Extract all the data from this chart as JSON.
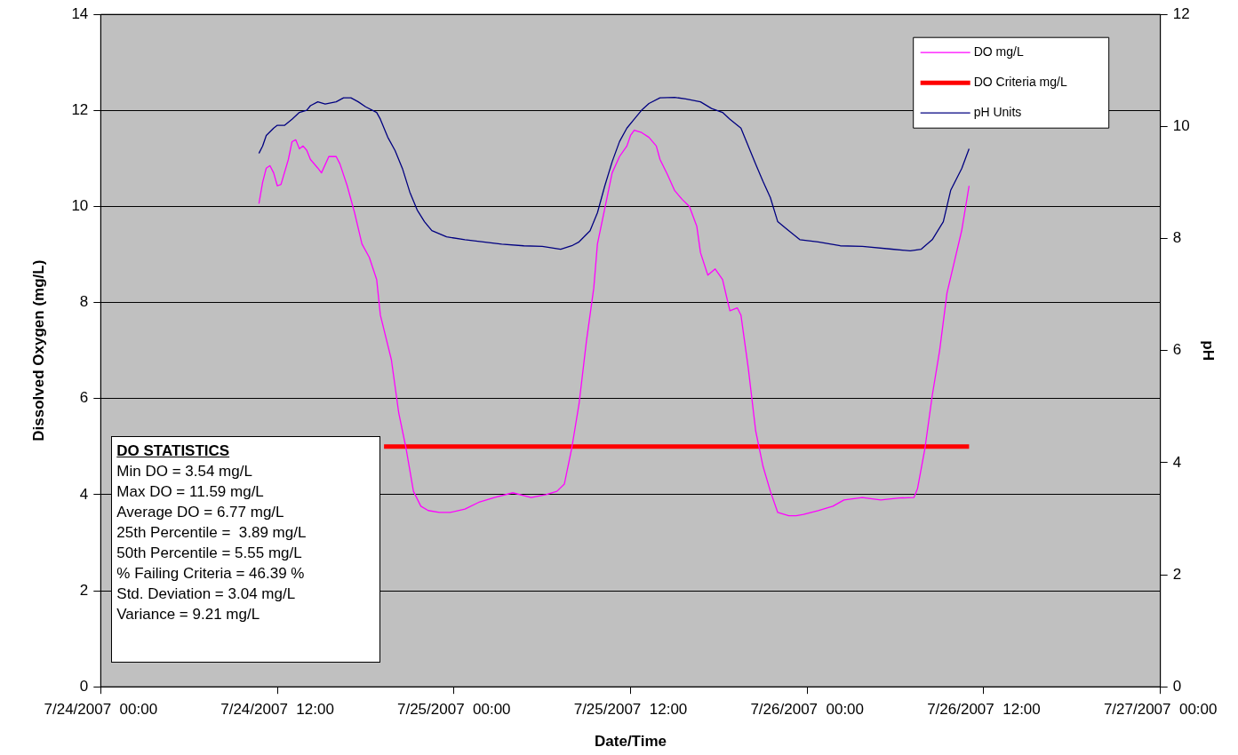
{
  "chart_data": {
    "type": "line",
    "xlabel": "Date/Time",
    "ylabel": "Dissolved Oxygen (mg/L)",
    "y2label": "pH",
    "series": [
      {
        "name": "DO mg/L",
        "color": "#ff00ff",
        "x": [
          "2007-07-24T10:45",
          "2007-07-24T11:00",
          "2007-07-24T11:15",
          "2007-07-24T11:30",
          "2007-07-24T11:45",
          "2007-07-24T12:00",
          "2007-07-24T12:15",
          "2007-07-24T12:45",
          "2007-07-24T13:00",
          "2007-07-24T13:15",
          "2007-07-24T13:30",
          "2007-07-24T13:45",
          "2007-07-24T14:00",
          "2007-07-24T14:15",
          "2007-07-24T14:45",
          "2007-07-24T15:00",
          "2007-07-24T15:30",
          "2007-07-24T16:00",
          "2007-07-24T16:15",
          "2007-07-24T16:45",
          "2007-07-24T17:15",
          "2007-07-24T17:45",
          "2007-07-24T18:15",
          "2007-07-24T18:45",
          "2007-07-24T19:00",
          "2007-07-24T19:45",
          "2007-07-24T20:15",
          "2007-07-24T20:45",
          "2007-07-24T21:15",
          "2007-07-24T21:45",
          "2007-07-24T22:15",
          "2007-07-24T23:00",
          "2007-07-24T23:45",
          "2007-07-25T00:45",
          "2007-07-25T01:45",
          "2007-07-25T02:45",
          "2007-07-25T04:00",
          "2007-07-25T05:15",
          "2007-07-25T06:15",
          "2007-07-25T07:00",
          "2007-07-25T07:30",
          "2007-07-25T08:00",
          "2007-07-25T08:30",
          "2007-07-25T09:00",
          "2007-07-25T09:30",
          "2007-07-25T09:45",
          "2007-07-25T10:15",
          "2007-07-25T10:45",
          "2007-07-25T11:15",
          "2007-07-25T11:45",
          "2007-07-25T12:00",
          "2007-07-25T12:15",
          "2007-07-25T12:45",
          "2007-07-25T13:15",
          "2007-07-25T13:45",
          "2007-07-25T14:00",
          "2007-07-25T14:30",
          "2007-07-25T15:00",
          "2007-07-25T15:30",
          "2007-07-25T16:00",
          "2007-07-25T16:30",
          "2007-07-25T16:45",
          "2007-07-25T17:15",
          "2007-07-25T17:45",
          "2007-07-25T18:15",
          "2007-07-25T18:30",
          "2007-07-25T18:45",
          "2007-07-25T19:15",
          "2007-07-25T19:30",
          "2007-07-25T20:00",
          "2007-07-25T20:30",
          "2007-07-25T21:00",
          "2007-07-25T21:30",
          "2007-07-25T22:00",
          "2007-07-25T22:45",
          "2007-07-25T23:15",
          "2007-07-25T23:45",
          "2007-07-26T00:45",
          "2007-07-26T01:45",
          "2007-07-26T02:30",
          "2007-07-26T03:45",
          "2007-07-26T05:00",
          "2007-07-26T06:15",
          "2007-07-26T07:15",
          "2007-07-26T07:30",
          "2007-07-26T08:00",
          "2007-07-26T08:30",
          "2007-07-26T09:00",
          "2007-07-26T09:30",
          "2007-07-26T10:00",
          "2007-07-26T10:30",
          "2007-07-26T11:00"
        ],
        "values": [
          10.06,
          10.5,
          10.8,
          10.85,
          10.7,
          10.43,
          10.46,
          10.98,
          11.35,
          11.39,
          11.2,
          11.26,
          11.17,
          10.98,
          10.8,
          10.7,
          11.04,
          11.04,
          10.89,
          10.43,
          9.87,
          9.22,
          8.94,
          8.48,
          7.74,
          6.81,
          5.7,
          4.96,
          4.07,
          3.76,
          3.67,
          3.63,
          3.63,
          3.7,
          3.85,
          3.94,
          4.04,
          3.94,
          4.0,
          4.07,
          4.22,
          4.96,
          5.89,
          7.19,
          8.3,
          9.22,
          9.96,
          10.7,
          11.04,
          11.26,
          11.48,
          11.59,
          11.54,
          11.44,
          11.26,
          10.98,
          10.67,
          10.33,
          10.15,
          10.0,
          9.59,
          9.04,
          8.57,
          8.7,
          8.48,
          8.15,
          7.83,
          7.89,
          7.74,
          6.63,
          5.33,
          4.59,
          4.07,
          3.63,
          3.56,
          3.56,
          3.59,
          3.67,
          3.76,
          3.89,
          3.94,
          3.89,
          3.93,
          3.94,
          4.13,
          4.96,
          6.07,
          7.0,
          8.2,
          8.85,
          9.5,
          10.43
        ]
      },
      {
        "name": "DO Criteria mg/L",
        "color": "#ff0000",
        "x": [
          "2007-07-24T19:15",
          "2007-07-26T11:00"
        ],
        "values": [
          5,
          5
        ]
      },
      {
        "name": "pH Units",
        "color": "#000080",
        "axis": "y2",
        "x": [
          "2007-07-24T10:45",
          "2007-07-24T11:00",
          "2007-07-24T11:15",
          "2007-07-24T11:45",
          "2007-07-24T12:00",
          "2007-07-24T12:30",
          "2007-07-24T13:00",
          "2007-07-24T13:30",
          "2007-07-24T14:00",
          "2007-07-24T14:15",
          "2007-07-24T14:45",
          "2007-07-24T15:15",
          "2007-07-24T16:00",
          "2007-07-24T16:30",
          "2007-07-24T17:00",
          "2007-07-24T17:30",
          "2007-07-24T18:00",
          "2007-07-24T18:45",
          "2007-07-24T19:00",
          "2007-07-24T19:30",
          "2007-07-24T20:00",
          "2007-07-24T20:30",
          "2007-07-24T21:00",
          "2007-07-24T21:30",
          "2007-07-24T22:00",
          "2007-07-24T22:30",
          "2007-07-24T23:30",
          "2007-07-25T00:45",
          "2007-07-25T02:00",
          "2007-07-25T03:15",
          "2007-07-25T04:45",
          "2007-07-25T06:00",
          "2007-07-25T07:15",
          "2007-07-25T08:00",
          "2007-07-25T08:30",
          "2007-07-25T09:15",
          "2007-07-25T09:45",
          "2007-07-25T10:15",
          "2007-07-25T10:45",
          "2007-07-25T11:15",
          "2007-07-25T11:45",
          "2007-07-25T12:15",
          "2007-07-25T12:45",
          "2007-07-25T13:15",
          "2007-07-25T14:00",
          "2007-07-25T15:00",
          "2007-07-25T15:45",
          "2007-07-25T16:45",
          "2007-07-25T17:30",
          "2007-07-25T18:15",
          "2007-07-25T18:45",
          "2007-07-25T19:30",
          "2007-07-25T20:00",
          "2007-07-25T20:30",
          "2007-07-25T21:00",
          "2007-07-25T21:30",
          "2007-07-25T22:00",
          "2007-07-25T22:45",
          "2007-07-25T23:30",
          "2007-07-26T00:45",
          "2007-07-26T02:15",
          "2007-07-26T03:45",
          "2007-07-26T05:45",
          "2007-07-26T07:00",
          "2007-07-26T07:45",
          "2007-07-26T08:30",
          "2007-07-26T09:15",
          "2007-07-26T09:45",
          "2007-07-26T10:30",
          "2007-07-26T11:00"
        ],
        "values": [
          9.52,
          9.65,
          9.84,
          9.97,
          10.02,
          10.02,
          10.13,
          10.25,
          10.29,
          10.37,
          10.44,
          10.4,
          10.44,
          10.51,
          10.51,
          10.44,
          10.35,
          10.25,
          10.13,
          9.81,
          9.57,
          9.25,
          8.83,
          8.51,
          8.3,
          8.14,
          8.03,
          7.98,
          7.94,
          7.9,
          7.87,
          7.86,
          7.81,
          7.87,
          7.94,
          8.14,
          8.46,
          8.94,
          9.37,
          9.73,
          9.97,
          10.13,
          10.29,
          10.41,
          10.51,
          10.52,
          10.49,
          10.44,
          10.32,
          10.25,
          10.13,
          9.97,
          9.65,
          9.33,
          9.02,
          8.73,
          8.3,
          8.14,
          7.98,
          7.94,
          7.87,
          7.86,
          7.81,
          7.78,
          7.81,
          7.98,
          8.3,
          8.86,
          9.25,
          9.6
        ]
      }
    ],
    "xlim": [
      "2007-07-24T00:00",
      "2007-07-27T00:00"
    ],
    "xticks": [
      {
        "value": "2007-07-24T00:00",
        "label": "7/24/2007  00:00"
      },
      {
        "value": "2007-07-24T12:00",
        "label": "7/24/2007  12:00"
      },
      {
        "value": "2007-07-25T00:00",
        "label": "7/25/2007  00:00"
      },
      {
        "value": "2007-07-25T12:00",
        "label": "7/25/2007  12:00"
      },
      {
        "value": "2007-07-26T00:00",
        "label": "7/26/2007  00:00"
      },
      {
        "value": "2007-07-26T12:00",
        "label": "7/26/2007  12:00"
      },
      {
        "value": "2007-07-27T00:00",
        "label": "7/27/2007  00:00"
      }
    ],
    "ylim": [
      0,
      14
    ],
    "yticks": [
      0,
      2,
      4,
      6,
      8,
      10,
      12,
      14
    ],
    "y2lim": [
      0,
      12
    ],
    "y2ticks": [
      0,
      2,
      4,
      6,
      8,
      10,
      12
    ],
    "grid": "y",
    "legend": "top right",
    "marker": "none",
    "line_style": "solid",
    "annotations": [
      "DO STATISTICS",
      "Min DO = 3.54 mg/L",
      "Max DO = 11.59 mg/L",
      "Average DO = 6.77 mg/L",
      "25th Percentile =  3.89 mg/L",
      "50th Percentile = 5.55 mg/L",
      "% Failing Criteria = 46.39 %",
      "Std. Deviation = 3.04 mg/L",
      "Variance = 9.21 mg/L"
    ]
  }
}
